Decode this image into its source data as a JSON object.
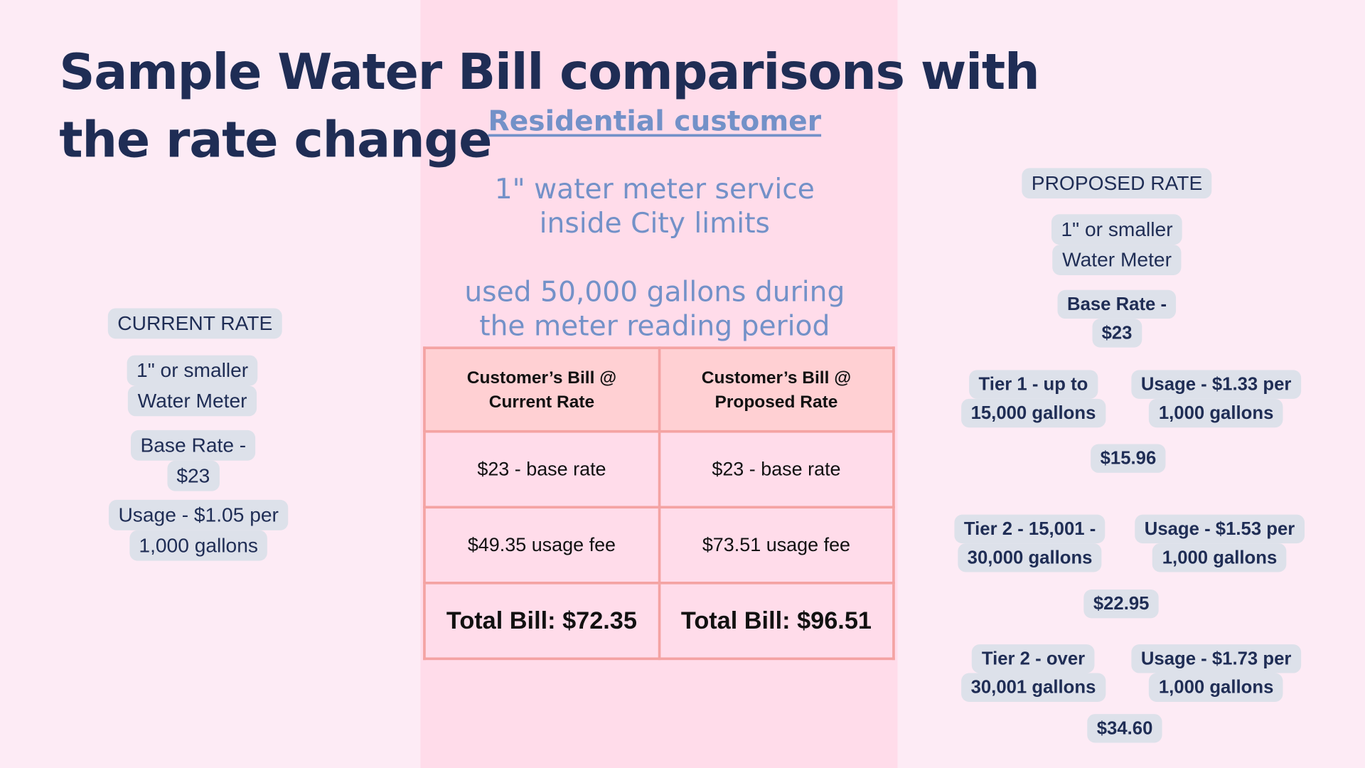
{
  "title": [
    "Sample Water Bill comparisons with",
    "the rate change"
  ],
  "center": {
    "heading": "Residential customer",
    "service": [
      "1\" water meter service",
      "inside City limits"
    ],
    "usage": [
      "used 50,000 gallons during",
      "the meter reading period"
    ]
  },
  "table": {
    "headers": [
      [
        "Customer’s Bill @",
        "Current Rate"
      ],
      [
        "Customer’s Bill @",
        "Proposed Rate"
      ]
    ],
    "rows": [
      [
        "$23 - base rate",
        "$23 - base rate"
      ],
      [
        "$49.35 usage fee",
        "$73.51 usage fee"
      ],
      [
        "Total Bill: $72.35",
        "Total Bill: $96.51"
      ]
    ]
  },
  "current": {
    "label": "CURRENT RATE",
    "meter": [
      "1\" or smaller",
      "Water Meter"
    ],
    "base": [
      "Base Rate -",
      "$23"
    ],
    "usage": [
      "Usage - $1.05 per",
      "1,000 gallons"
    ]
  },
  "proposed": {
    "label": "PROPOSED RATE",
    "meter": [
      "1\" or smaller",
      "Water Meter"
    ],
    "base": [
      "Base Rate -",
      "$23"
    ],
    "tiers": [
      {
        "tier": [
          "Tier 1 - up to",
          "15,000 gallons"
        ],
        "rate": [
          "Usage - $1.33 per",
          "1,000 gallons"
        ],
        "amount": "$15.96"
      },
      {
        "tier": [
          "Tier 2 - 15,001 -",
          "30,000 gallons"
        ],
        "rate": [
          "Usage - $1.53 per",
          "1,000 gallons"
        ],
        "amount": "$22.95"
      },
      {
        "tier": [
          "Tier 2 - over",
          "30,001 gallons"
        ],
        "rate": [
          "Usage - $1.73 per",
          "1,000 gallons"
        ],
        "amount": "$34.60"
      }
    ]
  },
  "colors": {
    "navy": "#1f2d55",
    "accent_blue": "#7391c8",
    "table_border": "#f4a3a3",
    "header_fill": "#ffd0d3",
    "pill": "#dde1ea"
  }
}
